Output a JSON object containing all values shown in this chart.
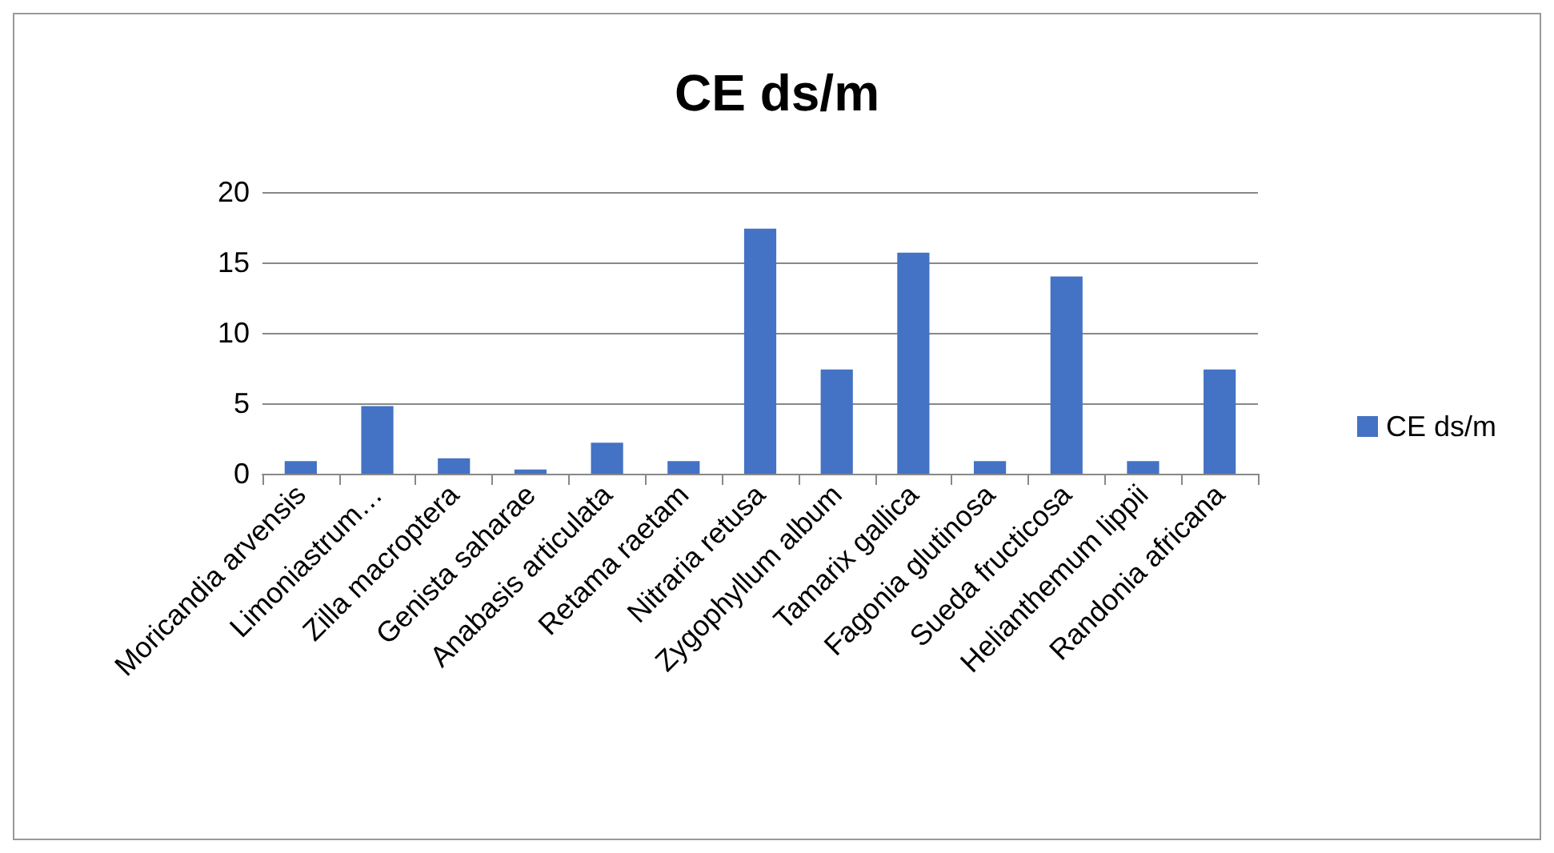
{
  "chart_data": {
    "type": "bar",
    "title": "CE ds/m",
    "categories": [
      "Moricandia arvensis",
      "Limoniastrum…",
      "Zilla macroptera",
      "Genista saharae",
      "Anabasis articulata",
      "Retama raetam",
      "Nitraria retusa",
      "Zygophyllum album",
      "Tamarix gallica",
      "Fagonia glutinosa",
      "Sueda fructicosa",
      "Helianthemum lippii",
      "Randonia africana"
    ],
    "series": [
      {
        "name": "CE ds/m",
        "color": "#4472c4",
        "values": [
          0.9,
          4.8,
          1.1,
          0.3,
          2.2,
          0.9,
          17.4,
          7.4,
          15.7,
          0.9,
          14.0,
          0.9,
          7.4
        ]
      }
    ],
    "ylim": [
      0,
      20
    ],
    "yticks": [
      0,
      5,
      10,
      15,
      20
    ],
    "grid": "y",
    "legend": "right"
  }
}
